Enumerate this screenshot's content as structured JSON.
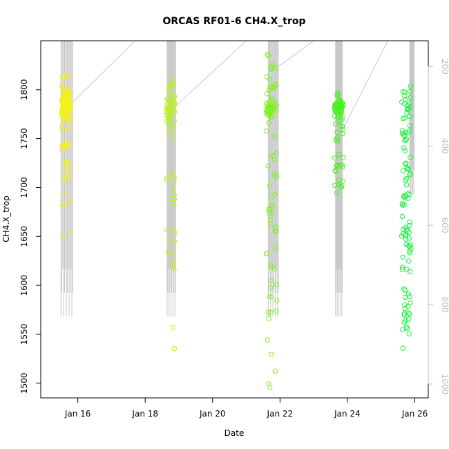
{
  "chart_data": {
    "type": "scatter",
    "title": "ORCAS RF01-6 CH4.X_trop",
    "xlabel": "Date",
    "ylabel": "CH4.X_trop",
    "x_ticks": [
      {
        "value": 16,
        "label": "Jan 16"
      },
      {
        "value": 18,
        "label": "Jan 18"
      },
      {
        "value": 20,
        "label": "Jan 20"
      },
      {
        "value": 22,
        "label": "Jan 22"
      },
      {
        "value": 24,
        "label": "Jan 24"
      },
      {
        "value": 26,
        "label": "Jan 26"
      }
    ],
    "xlim": [
      14.9,
      26.4
    ],
    "ylim": [
      1485,
      1850
    ],
    "y_ticks": [
      1500,
      1550,
      1600,
      1650,
      1700,
      1750,
      1800
    ],
    "y2_label_color": "#bbbbbb",
    "y2_ticks": [
      200,
      400,
      600,
      800,
      1000
    ],
    "y2lim": [
      1035,
      135
    ],
    "series": [
      {
        "color": "#f2f21a",
        "x_center": 15.65,
        "x_spread": 0.28,
        "clusters": [
          {
            "y": 1782,
            "n": 60,
            "sd": 8
          },
          {
            "y": 1795,
            "n": 20,
            "sd": 8
          },
          {
            "y": 1775,
            "n": 20,
            "sd": 10
          },
          {
            "y": 1740,
            "n": 12,
            "sd": 10
          },
          {
            "y": 1722,
            "n": 6,
            "sd": 3
          },
          {
            "y": 1700,
            "n": 5,
            "sd": 10
          },
          {
            "y": 1685,
            "n": 3,
            "sd": 4
          },
          {
            "y": 1660,
            "n": 2,
            "sd": 10
          },
          {
            "y": 1815,
            "n": 3,
            "sd": 6
          }
        ]
      },
      {
        "color": "#b8f21a",
        "x_center": 18.75,
        "x_spread": 0.26,
        "clusters": [
          {
            "y": 1780,
            "n": 30,
            "sd": 6
          },
          {
            "y": 1795,
            "n": 10,
            "sd": 6
          },
          {
            "y": 1760,
            "n": 6,
            "sd": 10
          },
          {
            "y": 1710,
            "n": 6,
            "sd": 8
          },
          {
            "y": 1685,
            "n": 4,
            "sd": 6
          },
          {
            "y": 1640,
            "n": 8,
            "sd": 12
          },
          {
            "y": 1620,
            "n": 2,
            "sd": 3
          },
          {
            "y": 1557,
            "n": 1,
            "sd": 1
          },
          {
            "y": 1535,
            "n": 1,
            "sd": 1
          },
          {
            "y": 1808,
            "n": 2,
            "sd": 3
          }
        ]
      },
      {
        "color": "#7ff21a",
        "x_center": 21.75,
        "x_spread": 0.32,
        "clusters": [
          {
            "y": 1780,
            "n": 35,
            "sd": 5
          },
          {
            "y": 1800,
            "n": 10,
            "sd": 8
          },
          {
            "y": 1820,
            "n": 6,
            "sd": 10
          },
          {
            "y": 1740,
            "n": 8,
            "sd": 15
          },
          {
            "y": 1700,
            "n": 8,
            "sd": 15
          },
          {
            "y": 1660,
            "n": 8,
            "sd": 15
          },
          {
            "y": 1625,
            "n": 6,
            "sd": 10
          },
          {
            "y": 1595,
            "n": 6,
            "sd": 8
          },
          {
            "y": 1572,
            "n": 4,
            "sd": 4
          },
          {
            "y": 1543,
            "n": 1,
            "sd": 1
          },
          {
            "y": 1530,
            "n": 1,
            "sd": 1
          },
          {
            "y": 1513,
            "n": 1,
            "sd": 1
          },
          {
            "y": 1498,
            "n": 2,
            "sd": 3
          },
          {
            "y": 1835,
            "n": 2,
            "sd": 2
          }
        ]
      },
      {
        "color": "#43f21a",
        "x_center": 23.75,
        "x_spread": 0.26,
        "clusters": [
          {
            "y": 1785,
            "n": 45,
            "sd": 7
          },
          {
            "y": 1765,
            "n": 10,
            "sd": 8
          },
          {
            "y": 1720,
            "n": 12,
            "sd": 8
          },
          {
            "y": 1700,
            "n": 5,
            "sd": 3
          },
          {
            "y": 1745,
            "n": 4,
            "sd": 6
          }
        ]
      },
      {
        "color": "#1af23f",
        "x_center": 25.75,
        "x_spread": 0.28,
        "clusters": [
          {
            "y": 1780,
            "n": 15,
            "sd": 10
          },
          {
            "y": 1755,
            "n": 10,
            "sd": 10
          },
          {
            "y": 1720,
            "n": 12,
            "sd": 12
          },
          {
            "y": 1690,
            "n": 12,
            "sd": 12
          },
          {
            "y": 1660,
            "n": 12,
            "sd": 12
          },
          {
            "y": 1630,
            "n": 12,
            "sd": 12
          },
          {
            "y": 1600,
            "n": 10,
            "sd": 12
          },
          {
            "y": 1570,
            "n": 8,
            "sd": 8
          },
          {
            "y": 1555,
            "n": 5,
            "sd": 4
          },
          {
            "y": 1534,
            "n": 1,
            "sd": 1
          },
          {
            "y": 1800,
            "n": 6,
            "sd": 8
          }
        ]
      }
    ],
    "pressure_traces": [
      {
        "x_start": 15.5,
        "x_end": 15.85,
        "p_min": 135,
        "p_max": 830
      },
      {
        "x_start": 18.65,
        "x_end": 18.9,
        "p_min": 135,
        "p_max": 830
      },
      {
        "x_start": 21.65,
        "x_end": 21.95,
        "p_min": 135,
        "p_max": 830
      },
      {
        "x_start": 23.65,
        "x_end": 23.85,
        "p_min": 135,
        "p_max": 830
      },
      {
        "x_start": 25.85,
        "x_end": 25.98,
        "p_min": 135,
        "p_max": 520
      }
    ],
    "ferry_lines": [
      {
        "x1": 15.85,
        "p1": 290,
        "x2": 17.7,
        "p2": 135
      },
      {
        "x1": 18.9,
        "p1": 300,
        "x2": 21.0,
        "p2": 135
      },
      {
        "x1": 21.95,
        "p1": 200,
        "x2": 23.0,
        "p2": 135
      },
      {
        "x1": 23.85,
        "p1": 360,
        "x2": 25.2,
        "p2": 135
      }
    ]
  }
}
